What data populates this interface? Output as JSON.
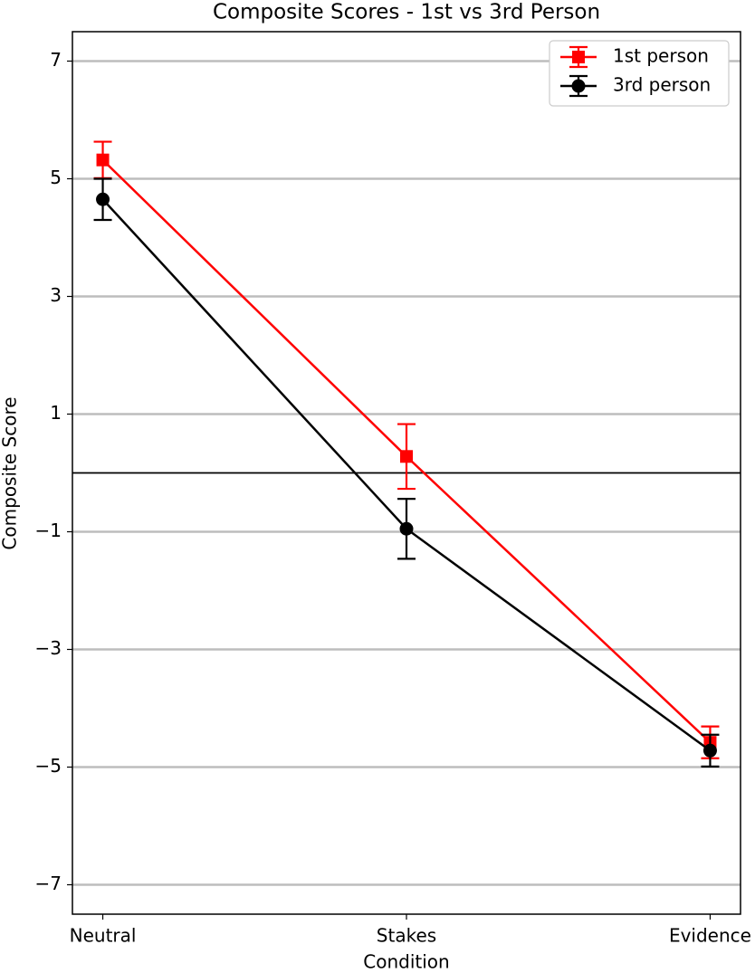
{
  "chart_data": {
    "type": "errorbar-line",
    "title": "Composite Scores - 1st vs 3rd Person",
    "xlabel": "Condition",
    "ylabel": "Composite Score",
    "categories": [
      "Neutral",
      "Stakes",
      "Evidence"
    ],
    "series": [
      {
        "name": "1st person",
        "color": "#ff0000",
        "marker": "square",
        "values": [
          5.32,
          0.28,
          -4.58
        ],
        "errors": [
          0.31,
          0.55,
          0.27
        ]
      },
      {
        "name": "3rd person",
        "color": "#000000",
        "marker": "circle",
        "values": [
          4.65,
          -0.95,
          -4.72
        ],
        "errors": [
          0.35,
          0.51,
          0.27
        ]
      }
    ],
    "ylim": [
      -7.5,
      7.5
    ],
    "yticks": [
      {
        "value": -7,
        "label": "−7"
      },
      {
        "value": -5,
        "label": "−5"
      },
      {
        "value": -3,
        "label": "−3"
      },
      {
        "value": -1,
        "label": "−1"
      },
      1,
      3,
      5,
      7
    ],
    "hline": 0,
    "grid": true,
    "legend": "upper right"
  }
}
